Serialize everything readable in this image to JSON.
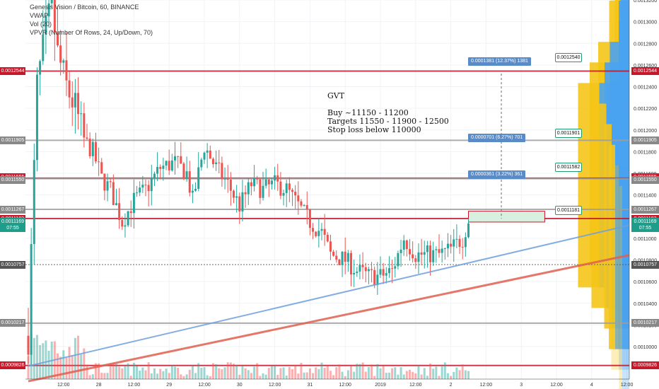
{
  "legend": {
    "title": "Genesis Vision / Bitcoin, 60, BINANCE",
    "line2": "VWAP",
    "line3": "Vol (20)",
    "line4": "VPVR (Number Of Rows, 24, Up/Down, 70)"
  },
  "note": {
    "heading": "GVT",
    "line1": "Buy ~11150 - 11200",
    "line2": "Targets 11550 - 11900 - 12500",
    "line3": "Stop loss below 110000"
  },
  "measure_labels": [
    {
      "text": "0.0001381 (12.37%) 1381",
      "price": 0.001263
    },
    {
      "text": "0.0000701 (6.27%) 701",
      "price": 0.0011928
    },
    {
      "text": "0.0000361 (3.22%) 361",
      "price": 0.001159
    }
  ],
  "callouts": [
    {
      "text": "0.0012540",
      "price": 0.0012672
    },
    {
      "text": "0.0011901",
      "price": 0.0011972
    },
    {
      "text": "0.0011582",
      "price": 0.0011662
    },
    {
      "text": "0.0011181",
      "price": 0.0011262
    }
  ],
  "price_tags": [
    {
      "text": "0.0012544",
      "price": 0.0012544,
      "color": "#c7172b"
    },
    {
      "text": "0.0011905",
      "price": 0.0011905,
      "color": "#888888"
    },
    {
      "text": "0.0011555",
      "price": 0.0011562,
      "color": "#c7172b"
    },
    {
      "text": "0.0011550",
      "price": 0.0011535,
      "color": "#888888"
    },
    {
      "text": "0.0011267",
      "price": 0.0011267,
      "color": "#888888"
    },
    {
      "text": "0.0011182",
      "price": 0.0011182,
      "color": "#c7172b"
    },
    {
      "text": "0.0011169",
      "price": 0.0011155,
      "color": "#1e9e8a"
    },
    {
      "text": "07:55",
      "price": 0.0011095,
      "color": "#1e9e8a"
    },
    {
      "text": "0.0010757",
      "price": 0.0010757,
      "color": "#555555"
    },
    {
      "text": "0.0010217",
      "price": 0.0010217,
      "color": "#888888"
    },
    {
      "text": "0.0009826",
      "price": 0.0009826,
      "color": "#c7172b"
    }
  ],
  "left_tags": [
    {
      "text": "0.0012544",
      "price": 0.0012544,
      "color": "#c7172b"
    },
    {
      "text": "0.0011905",
      "price": 0.0011905,
      "color": "#888888"
    },
    {
      "text": "0.0011555",
      "price": 0.0011562,
      "color": "#c7172b"
    },
    {
      "text": "0.0011550",
      "price": 0.0011535,
      "color": "#888888"
    },
    {
      "text": "0.0011267",
      "price": 0.0011267,
      "color": "#888888"
    },
    {
      "text": "0.0011182",
      "price": 0.0011182,
      "color": "#c7172b"
    },
    {
      "text": "0.0011169",
      "price": 0.0011155,
      "color": "#1e9e8a"
    },
    {
      "text": "07:55",
      "price": 0.0011095,
      "color": "#1e9e8a"
    },
    {
      "text": "0.0010757",
      "price": 0.0010757,
      "color": "#555555"
    },
    {
      "text": "0.0010217",
      "price": 0.0010217,
      "color": "#888888"
    },
    {
      "text": "0.0009826",
      "price": 0.0009826,
      "color": "#c7172b"
    }
  ],
  "colors": {
    "up": "#26a69a",
    "down": "#ef5350",
    "resistance": "#c7172b",
    "support": "#9e9e9e",
    "trend_blue": "#6fa0dc",
    "trend_red": "#e0604f",
    "vpvr_up": "#4aa3f0",
    "vpvr_down": "#f5c518"
  },
  "chart_data": {
    "type": "candlestick",
    "symbol": "Genesis Vision / Bitcoin, 60, BINANCE",
    "ylim": [
      0.00097,
      0.00132
    ],
    "y_ticks": [
      0.001,
      0.00102,
      0.00104,
      0.00106,
      0.00108,
      0.0011,
      0.00112,
      0.00114,
      0.00116,
      0.00118,
      0.0012,
      0.00122,
      0.00124,
      0.00126,
      0.00128,
      0.0013,
      0.00132
    ],
    "y_tick_labels": [
      "0.0010000",
      "0.0010200",
      "0.0010400",
      "0.0010600",
      "0.0010800",
      "0.0011000",
      "0.0011200",
      "0.0011400",
      "0.0011600",
      "0.0011800",
      "0.0012000",
      "0.0012200",
      "0.0012400",
      "0.0012600",
      "0.0012800",
      "0.0013000",
      "0.0013200"
    ],
    "x_tick_labels": [
      "12:00",
      "28",
      "12:00",
      "29",
      "12:00",
      "30",
      "12:00",
      "31",
      "12:00",
      "2019",
      "12:00",
      "2",
      "12:00",
      "3",
      "12:00",
      "4",
      "12:00"
    ],
    "x_tick_bars": [
      12,
      24,
      36,
      48,
      60,
      72,
      84,
      96,
      108,
      120,
      132,
      144,
      156,
      168,
      180,
      192,
      204
    ],
    "bars_visible": 220,
    "horizontal_levels": [
      {
        "price": 0.0012544,
        "kind": "resistance"
      },
      {
        "price": 0.0011905,
        "kind": "support"
      },
      {
        "price": 0.0011555,
        "kind": "resistance"
      },
      {
        "price": 0.001155,
        "kind": "support"
      },
      {
        "price": 0.0011267,
        "kind": "support"
      },
      {
        "price": 0.0011182,
        "kind": "resistance"
      },
      {
        "price": 0.0010757,
        "kind": "dotted"
      },
      {
        "price": 0.0010217,
        "kind": "support"
      },
      {
        "price": 0.0009826,
        "kind": "resistance"
      }
    ],
    "buy_zone": {
      "from": 0.001115,
      "to": 0.001125
    },
    "trendlines": [
      {
        "name": "blue",
        "from_bar": 0,
        "from_price": 0.000982,
        "to_bar": 211,
        "to_price": 0.001116
      },
      {
        "name": "red",
        "from_bar": 0,
        "from_price": 0.000968,
        "to_bar": 211,
        "to_price": 0.001088
      }
    ],
    "anchors": [
      [
        0,
        0.00101
      ],
      [
        3,
        0.00124
      ],
      [
        6,
        0.00129
      ],
      [
        8,
        0.001315
      ],
      [
        10,
        0.00127
      ],
      [
        13,
        0.00124
      ],
      [
        16,
        0.00122
      ],
      [
        19,
        0.00119
      ],
      [
        22,
        0.00118
      ],
      [
        25,
        0.001155
      ],
      [
        28,
        0.001145
      ],
      [
        32,
        0.001115
      ],
      [
        36,
        0.001135
      ],
      [
        40,
        0.001145
      ],
      [
        45,
        0.001165
      ],
      [
        50,
        0.00117
      ],
      [
        54,
        0.00116
      ],
      [
        56,
        0.001135
      ],
      [
        60,
        0.001185
      ],
      [
        64,
        0.001165
      ],
      [
        68,
        0.00115
      ],
      [
        72,
        0.00113
      ],
      [
        76,
        0.00115
      ],
      [
        80,
        0.001145
      ],
      [
        84,
        0.00115
      ],
      [
        88,
        0.001145
      ],
      [
        92,
        0.00113
      ],
      [
        96,
        0.001115
      ],
      [
        100,
        0.001105
      ],
      [
        103,
        0.001085
      ],
      [
        108,
        0.00108
      ],
      [
        112,
        0.00107
      ],
      [
        116,
        0.001065
      ],
      [
        120,
        0.001065
      ],
      [
        124,
        0.00107
      ],
      [
        128,
        0.0011
      ],
      [
        132,
        0.001085
      ],
      [
        136,
        0.001085
      ],
      [
        140,
        0.001085
      ],
      [
        144,
        0.00109
      ],
      [
        148,
        0.0011
      ],
      [
        150,
        0.001117
      ]
    ],
    "volume_ylim": [
      0,
      1
    ],
    "vpvr_rows": [
      {
        "price": 0.00132,
        "up": 0.2,
        "down": 0.3
      },
      {
        "price": 0.001301,
        "up": 0.2,
        "down": 0.35
      },
      {
        "price": 0.001282,
        "up": 0.25,
        "down": 0.45
      },
      {
        "price": 0.001263,
        "up": 0.3,
        "down": 0.2
      },
      {
        "price": 0.001244,
        "up": 0.25,
        "down": 0.25
      },
      {
        "price": 0.001225,
        "up": 0.3,
        "down": 0.45
      },
      {
        "price": 0.001206,
        "up": 0.3,
        "down": 0.2
      },
      {
        "price": 0.001187,
        "up": 0.55,
        "down": 0.55
      },
      {
        "price": 0.001168,
        "up": 0.7,
        "down": 0.7
      },
      {
        "price": 0.001149,
        "up": 0.85,
        "down": 1.0
      },
      {
        "price": 0.00113,
        "up": 0.65,
        "down": 0.7
      },
      {
        "price": 0.001111,
        "up": 0.5,
        "down": 0.35
      },
      {
        "price": 0.001092,
        "up": 0.4,
        "down": 0.3
      },
      {
        "price": 0.001073,
        "up": 0.3,
        "down": 0.35
      },
      {
        "price": 0.001054,
        "up": 0.2,
        "down": 0.15
      }
    ]
  }
}
